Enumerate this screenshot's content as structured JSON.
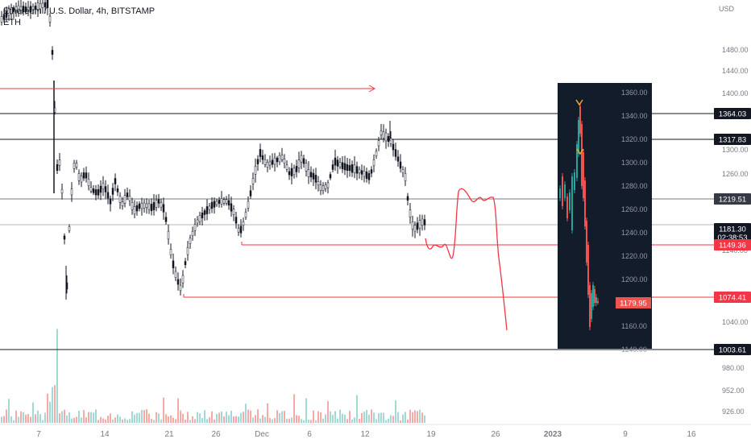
{
  "header": {
    "symbol_title": "Ethereum / U.S. Dollar, 4h, BITSTAMP",
    "sub_label": "ETH"
  },
  "chart_data": {
    "type": "candlestick",
    "currency_label": "USD",
    "price_axis_ticks": [
      "1480.00",
      "1440.00",
      "1400.00",
      "1300.00",
      "1260.00",
      "1140.00",
      "1040.00",
      "980.00",
      "952.00",
      "926.00"
    ],
    "time_axis_labels": [
      "7",
      "14",
      "21",
      "26",
      "Dec",
      "6",
      "12",
      "19",
      "26",
      "2023",
      "9",
      "16"
    ],
    "horizontal_levels": [
      {
        "label": "1364.03",
        "style": "dark"
      },
      {
        "label": "1317.83",
        "style": "dark"
      },
      {
        "label": "1219.51",
        "style": "grey"
      },
      {
        "label": "1181.30",
        "sub": "02:38:53",
        "style": "dark"
      },
      {
        "label": "1149.36",
        "style": "red"
      },
      {
        "label": "1074.41",
        "style": "red"
      },
      {
        "label": "1003.61",
        "style": "dark"
      }
    ],
    "inset": {
      "price_ticks": [
        "1360.00",
        "1340.00",
        "1320.00",
        "1300.00",
        "1280.00",
        "1260.00",
        "1240.00",
        "1220.00",
        "1200.00",
        "1180.00",
        "1160.00",
        "1140.00"
      ],
      "last_price_label": "1179.95",
      "colors": {
        "background": "#131c2b",
        "up": "#26a69a",
        "down": "#ef5350",
        "marker": "#f5a623"
      }
    },
    "colors": {
      "candle": "#131722",
      "level_red": "#f23645",
      "level_dark": "#131722",
      "level_grey": "#787b86",
      "volume_up": "#a3d9d4",
      "volume_down": "#f7a9a7",
      "projection": "#f23645"
    }
  }
}
